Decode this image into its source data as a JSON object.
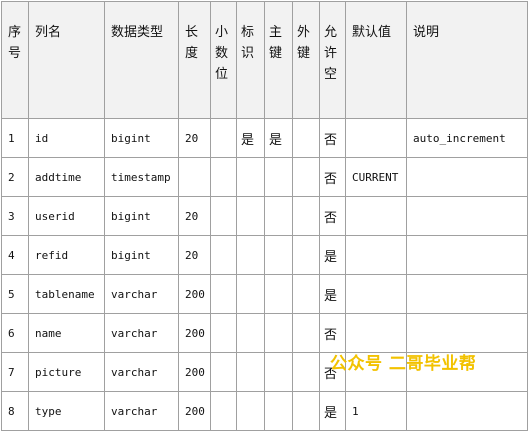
{
  "headers": [
    "序号",
    "列名",
    "数据类型",
    "长度",
    "小数位",
    "标识",
    "主键",
    "外键",
    "允许空",
    "默认值",
    "说明"
  ],
  "rows": [
    [
      "1",
      "id",
      "bigint",
      "20",
      "",
      "是",
      "是",
      "",
      "否",
      "",
      "auto_increment"
    ],
    [
      "2",
      "addtime",
      "timestamp",
      "",
      "",
      "",
      "",
      "",
      "否",
      "CURRENT",
      ""
    ],
    [
      "3",
      "userid",
      "bigint",
      "20",
      "",
      "",
      "",
      "",
      "否",
      "",
      ""
    ],
    [
      "4",
      "refid",
      "bigint",
      "20",
      "",
      "",
      "",
      "",
      "是",
      "",
      ""
    ],
    [
      "5",
      "tablename",
      "varchar",
      "200",
      "",
      "",
      "",
      "",
      "是",
      "",
      ""
    ],
    [
      "6",
      "name",
      "varchar",
      "200",
      "",
      "",
      "",
      "",
      "否",
      "",
      ""
    ],
    [
      "7",
      "picture",
      "varchar",
      "200",
      "",
      "",
      "",
      "",
      "否",
      "",
      ""
    ],
    [
      "8",
      "type",
      "varchar",
      "200",
      "",
      "",
      "",
      "",
      "是",
      "1",
      ""
    ]
  ],
  "watermark": "公众号 二哥毕业帮"
}
